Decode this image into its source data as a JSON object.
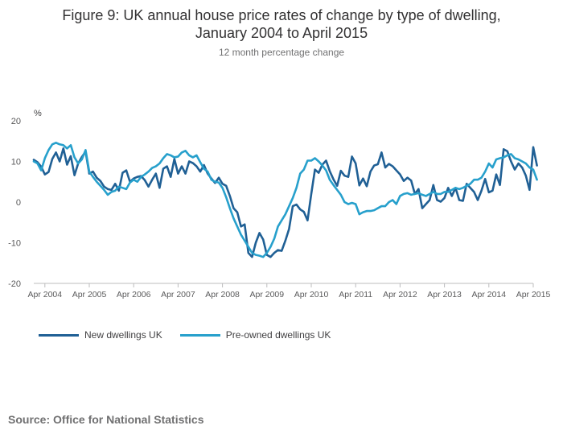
{
  "title_line1": "Figure 9: UK annual house price rates of change by type of dwelling,",
  "title_line2": "January 2004 to April 2015",
  "subtitle": "12 month percentage change",
  "source": "Source: Office for National Statistics",
  "colors": {
    "new": "#206095",
    "preowned": "#27a0cc",
    "axis": "#bcbcbd",
    "text": "#414042"
  },
  "chart_data": {
    "type": "line",
    "ylabel": "%",
    "ylim": [
      -20,
      20
    ],
    "yticks": [
      20,
      10,
      0,
      -10,
      -20
    ],
    "x_start": "2004-01",
    "x_end": "2015-04",
    "xticks": [
      "Apr 2004",
      "Apr 2005",
      "Apr 2006",
      "Apr 2007",
      "Apr 2008",
      "Apr 2009",
      "Apr 2010",
      "Apr 2011",
      "Apr 2012",
      "Apr 2013",
      "Apr 2014",
      "Apr 2015"
    ],
    "legend_position": "bottom-left",
    "grid": false,
    "series": [
      {
        "name": "New dwellings UK",
        "color": "#206095",
        "values": [
          10.4,
          9.8,
          8.7,
          6.8,
          7.4,
          10.6,
          12.2,
          10.0,
          13.2,
          9.2,
          11.3,
          6.6,
          9.5,
          11.1,
          12.4,
          7.0,
          7.5,
          6.0,
          5.2,
          3.8,
          3.2,
          3.0,
          4.5,
          2.8,
          7.2,
          7.8,
          5.0,
          5.8,
          6.2,
          6.4,
          5.4,
          3.8,
          5.5,
          7.0,
          3.5,
          8.2,
          8.8,
          6.2,
          10.6,
          7.0,
          8.8,
          7.0,
          10.0,
          9.6,
          8.8,
          7.5,
          9.1,
          7.0,
          5.8,
          4.7,
          6.0,
          4.5,
          4.0,
          1.5,
          -1.5,
          -2.5,
          -6.0,
          -5.5,
          -12.5,
          -13.5,
          -10.0,
          -7.6,
          -9.2,
          -13.0,
          -13.5,
          -12.5,
          -11.8,
          -12.0,
          -9.5,
          -6.6,
          -1.0,
          -0.6,
          -1.8,
          -2.4,
          -4.5,
          2.0,
          8.0,
          7.2,
          9.2,
          10.2,
          7.6,
          5.6,
          4.0,
          7.7,
          6.5,
          6.2,
          11.2,
          9.5,
          4.1,
          5.8,
          3.9,
          7.5,
          9.0,
          9.3,
          12.2,
          8.5,
          9.4,
          8.8,
          7.8,
          6.8,
          5.2,
          6.0,
          5.3,
          2.0,
          3.2,
          -1.5,
          -0.5,
          0.5,
          4.2,
          0.5,
          0.1,
          1.0,
          3.5,
          1.5,
          3.5,
          0.5,
          0.3,
          4.5,
          3.5,
          2.5,
          0.5,
          2.8,
          5.7,
          2.4,
          2.8,
          6.8,
          4.2,
          13.0,
          12.5,
          10.0,
          8.0,
          9.5,
          8.5,
          6.5,
          3.0,
          13.5,
          9.0
        ]
      },
      {
        "name": "Pre-owned dwellings UK",
        "color": "#27a0cc",
        "values": [
          10.0,
          9.5,
          7.8,
          10.8,
          12.8,
          14.2,
          14.6,
          14.2,
          14.0,
          13.2,
          14.0,
          11.0,
          9.5,
          10.5,
          12.8,
          7.5,
          6.2,
          5.0,
          4.0,
          3.0,
          1.8,
          2.5,
          2.8,
          3.8,
          3.5,
          3.2,
          4.8,
          5.5,
          5.0,
          6.2,
          6.8,
          7.5,
          8.4,
          8.8,
          9.5,
          10.8,
          11.8,
          11.5,
          11.0,
          11.2,
          12.2,
          12.6,
          11.5,
          11.0,
          11.5,
          9.8,
          8.2,
          7.5,
          5.5,
          5.0,
          4.8,
          3.5,
          1.2,
          -1.5,
          -4.0,
          -6.0,
          -8.0,
          -9.5,
          -11.0,
          -12.5,
          -13.0,
          -13.2,
          -13.5,
          -12.5,
          -11.0,
          -9.0,
          -6.0,
          -4.5,
          -3.0,
          -1.0,
          1.0,
          3.5,
          7.0,
          8.0,
          10.2,
          10.2,
          10.8,
          10.0,
          9.0,
          7.8,
          5.5,
          4.2,
          3.0,
          1.8,
          0.0,
          -0.5,
          -0.2,
          -0.5,
          -3.0,
          -2.5,
          -2.2,
          -2.2,
          -2.0,
          -1.5,
          -1.0,
          -1.0,
          0.0,
          0.5,
          -0.5,
          1.5,
          2.0,
          2.2,
          1.8,
          2.0,
          2.2,
          1.8,
          1.5,
          2.0,
          2.5,
          2.0,
          2.0,
          2.5,
          2.5,
          3.0,
          3.5,
          3.2,
          3.5,
          4.0,
          4.5,
          5.5,
          5.5,
          6.0,
          7.5,
          9.5,
          8.5,
          10.5,
          10.8,
          11.0,
          11.5,
          11.8,
          10.8,
          10.5,
          10.0,
          9.5,
          8.5,
          8.0,
          5.5
        ]
      }
    ]
  }
}
